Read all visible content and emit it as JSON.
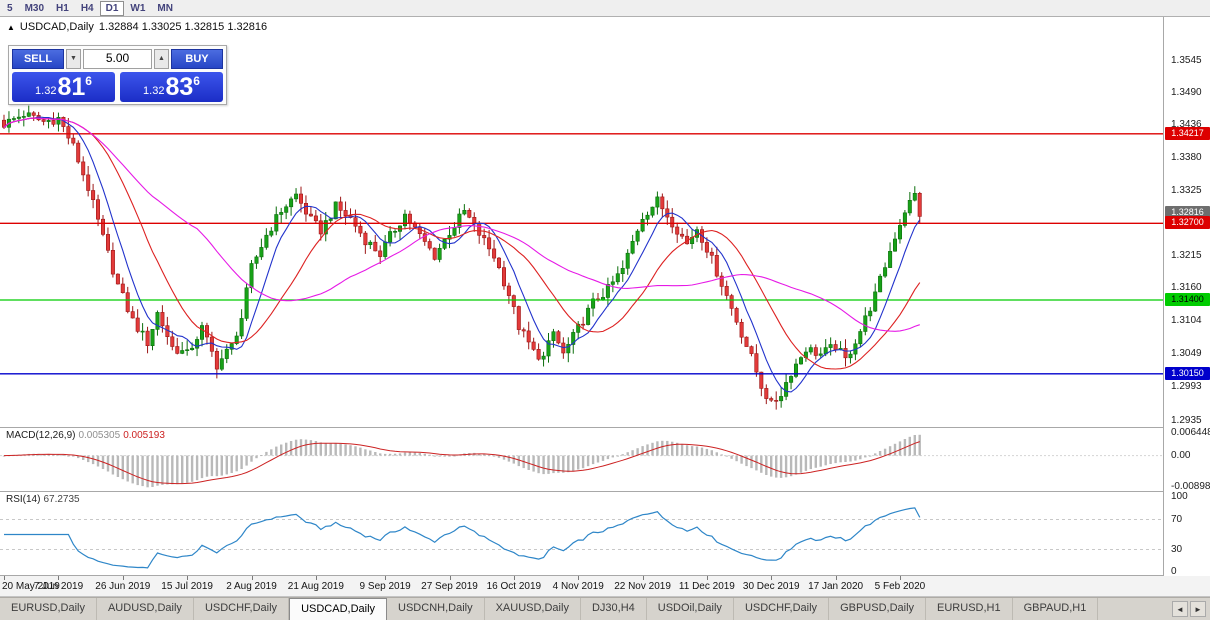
{
  "toolbar": {
    "timeframes": [
      "5",
      "M30",
      "H1",
      "H4",
      "D1",
      "W1",
      "MN"
    ],
    "active": "D1"
  },
  "icons": {
    "chart_marker": "▲",
    "spinner_up": "▲",
    "spinner_down": "▼",
    "tab_scroll_left": "◄",
    "tab_scroll_right": "►"
  },
  "chart": {
    "symbol": "USDCAD,Daily",
    "ohlc": "1.32884 1.33025 1.32815 1.32816",
    "trade_panel": {
      "sell_label": "SELL",
      "buy_label": "BUY",
      "volume": "5.00",
      "bid": {
        "prefix": "1.32",
        "big": "81",
        "sup": "6"
      },
      "ask": {
        "prefix": "1.32",
        "big": "83",
        "sup": "6"
      }
    },
    "price_axis": [
      "1.3545",
      "1.3490",
      "1.3436",
      "1.3380",
      "1.3325",
      "1.3270",
      "1.3215",
      "1.3160",
      "1.3104",
      "1.3049",
      "1.2993",
      "1.2935"
    ],
    "current_price": {
      "label": "1.32816",
      "color": "#6e6e6e"
    },
    "hlines": [
      {
        "price": "1.34217",
        "value": 1.34217,
        "color": "#dd0000",
        "text": "#ffffff"
      },
      {
        "price": "1.32700",
        "value": 1.327,
        "color": "#dd0000",
        "text": "#ffffff"
      },
      {
        "price": "1.31400",
        "value": 1.314,
        "color": "#00cc00",
        "text": "#000000"
      },
      {
        "price": "1.30150",
        "value": 1.3015,
        "color": "#0000cc",
        "text": "#ffffff"
      }
    ]
  },
  "macd": {
    "title": "MACD(12,26,9)",
    "value_main": "0.005305",
    "value_signal": "0.005193",
    "axis": [
      "0.006448",
      "0.00",
      "-0.008982"
    ],
    "axis_values": [
      0.006448,
      0,
      -0.008982
    ]
  },
  "rsi": {
    "title": "RSI(14)",
    "value": "67.2735",
    "axis": [
      "100",
      "70",
      "30",
      "0"
    ],
    "axis_values": [
      100,
      70,
      30,
      0
    ],
    "levels": [
      70,
      30
    ]
  },
  "dates": {
    "ticks": [
      {
        "label": "20 May 2019",
        "i": 0
      },
      {
        "label": "7 Jun 2019",
        "i": 11
      },
      {
        "label": "26 Jun 2019",
        "i": 24
      },
      {
        "label": "15 Jul 2019",
        "i": 37
      },
      {
        "label": "2 Aug 2019",
        "i": 50
      },
      {
        "label": "21 Aug 2019",
        "i": 63
      },
      {
        "label": "9 Sep 2019",
        "i": 77
      },
      {
        "label": "27 Sep 2019",
        "i": 90
      },
      {
        "label": "16 Oct 2019",
        "i": 103
      },
      {
        "label": "4 Nov 2019",
        "i": 116
      },
      {
        "label": "22 Nov 2019",
        "i": 129
      },
      {
        "label": "11 Dec 2019",
        "i": 142
      },
      {
        "label": "30 Dec 2019",
        "i": 155
      },
      {
        "label": "17 Jan 2020",
        "i": 168
      },
      {
        "label": "5 Feb 2020",
        "i": 181
      }
    ]
  },
  "tabs": {
    "items": [
      "EURUSD,Daily",
      "AUDUSD,Daily",
      "USDCHF,Daily",
      "USDCAD,Daily",
      "USDCNH,Daily",
      "XAUUSD,Daily",
      "DJ30,H4",
      "USDOil,Daily",
      "USDCHF,Daily",
      "GBPUSD,Daily",
      "EURUSD,H1",
      "GBPAUD,H1"
    ],
    "active_index": 3
  },
  "chart_data": {
    "type": "candlestick",
    "symbol": "USDCAD",
    "timeframe": "Daily",
    "num_candles": 186,
    "visible_range": {
      "price_min": 1.2935,
      "price_max": 1.3545,
      "date_start": "20 May 2019",
      "date_end": "5 Feb 2020"
    },
    "key_levels": [
      1.34217,
      1.327,
      1.314,
      1.3015
    ],
    "last": {
      "open": "1.32884",
      "high": "1.33025",
      "low": "1.32815",
      "close": "1.32816"
    },
    "indicators": {
      "macd": "MACD(12,26,9) 0.005305 0.005193",
      "rsi": "RSI(14) 67.2735"
    },
    "moving_averages": [
      {
        "period": 7,
        "color": "#2233cc"
      },
      {
        "period": 18,
        "color": "#dd2222"
      },
      {
        "period": 40,
        "color": "#e61ae6"
      }
    ],
    "close_anchors": [
      [
        0,
        1.3438
      ],
      [
        4,
        1.3455
      ],
      [
        8,
        1.3442
      ],
      [
        11,
        1.3448
      ],
      [
        14,
        1.34
      ],
      [
        17,
        1.333
      ],
      [
        20,
        1.3245
      ],
      [
        23,
        1.3165
      ],
      [
        26,
        1.3105
      ],
      [
        29,
        1.3068
      ],
      [
        31,
        1.3118
      ],
      [
        34,
        1.306
      ],
      [
        37,
        1.3048
      ],
      [
        40,
        1.3092
      ],
      [
        43,
        1.303
      ],
      [
        46,
        1.3062
      ],
      [
        48,
        1.311
      ],
      [
        50,
        1.3195
      ],
      [
        53,
        1.325
      ],
      [
        56,
        1.3292
      ],
      [
        59,
        1.3318
      ],
      [
        62,
        1.3275
      ],
      [
        64,
        1.3258
      ],
      [
        67,
        1.3298
      ],
      [
        70,
        1.3278
      ],
      [
        73,
        1.3242
      ],
      [
        76,
        1.3218
      ],
      [
        78,
        1.3248
      ],
      [
        81,
        1.3285
      ],
      [
        84,
        1.3248
      ],
      [
        87,
        1.3215
      ],
      [
        90,
        1.3255
      ],
      [
        93,
        1.329
      ],
      [
        96,
        1.3252
      ],
      [
        99,
        1.3215
      ],
      [
        102,
        1.315
      ],
      [
        104,
        1.3095
      ],
      [
        107,
        1.3052
      ],
      [
        109,
        1.3042
      ],
      [
        111,
        1.3085
      ],
      [
        113,
        1.3048
      ],
      [
        116,
        1.3092
      ],
      [
        119,
        1.3135
      ],
      [
        122,
        1.3158
      ],
      [
        125,
        1.3192
      ],
      [
        127,
        1.3238
      ],
      [
        129,
        1.3282
      ],
      [
        132,
        1.3308
      ],
      [
        135,
        1.3272
      ],
      [
        138,
        1.3235
      ],
      [
        140,
        1.3262
      ],
      [
        142,
        1.3228
      ],
      [
        145,
        1.3168
      ],
      [
        148,
        1.3105
      ],
      [
        151,
        1.3042
      ],
      [
        153,
        1.2995
      ],
      [
        155,
        1.2962
      ],
      [
        157,
        1.2982
      ],
      [
        159,
        1.3018
      ],
      [
        162,
        1.3058
      ],
      [
        165,
        1.3048
      ],
      [
        168,
        1.3062
      ],
      [
        170,
        1.3038
      ],
      [
        173,
        1.3088
      ],
      [
        176,
        1.3148
      ],
      [
        178,
        1.3198
      ],
      [
        180,
        1.3248
      ],
      [
        182,
        1.3292
      ],
      [
        184,
        1.3318
      ],
      [
        185,
        1.32816
      ]
    ]
  }
}
